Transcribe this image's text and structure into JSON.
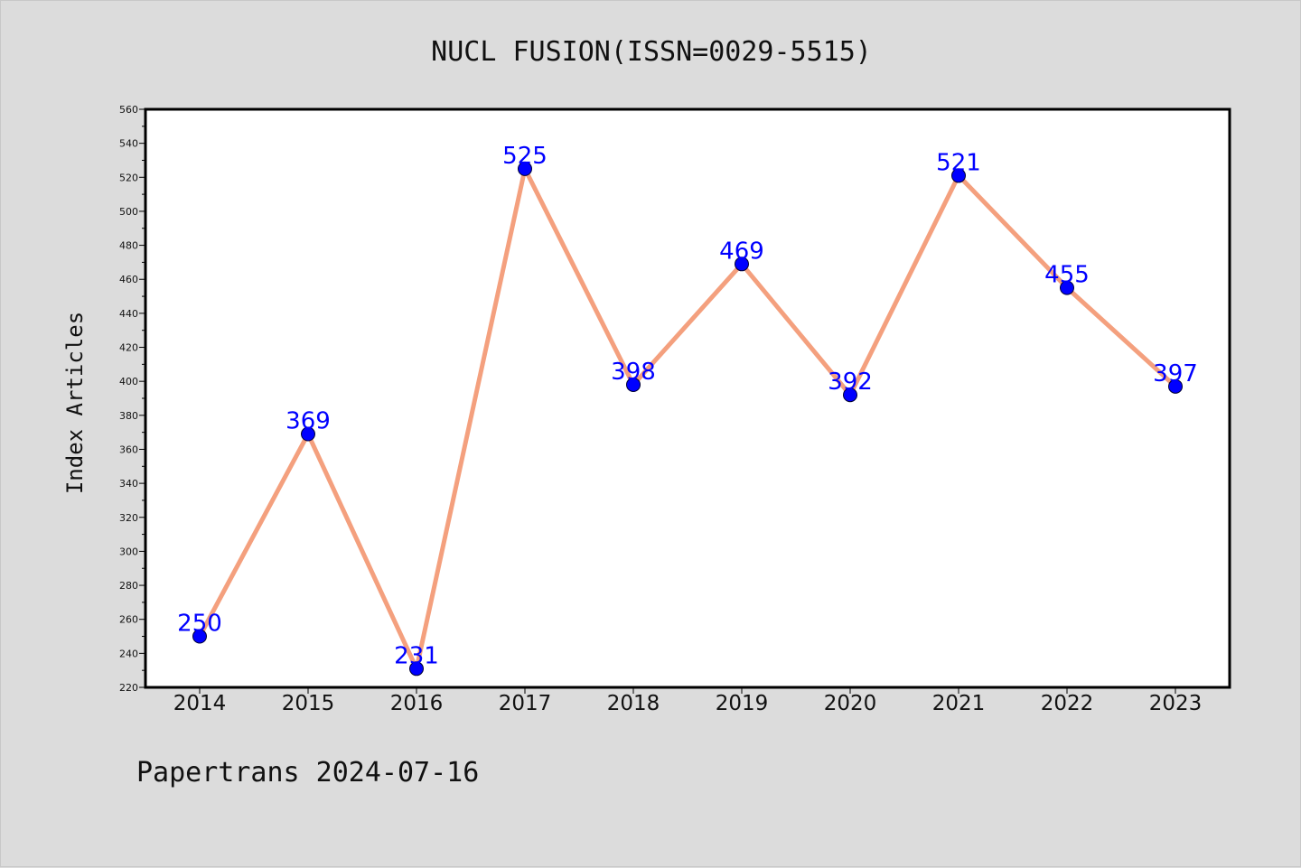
{
  "chart_data": {
    "type": "line",
    "title": "NUCL FUSION(ISSN=0029-5515)",
    "ylabel": "Index Articles",
    "xlabel": "",
    "footer": "Papertrans 2024-07-16",
    "categories": [
      "2014",
      "2015",
      "2016",
      "2017",
      "2018",
      "2019",
      "2020",
      "2021",
      "2022",
      "2023"
    ],
    "values": [
      250,
      369,
      231,
      525,
      398,
      469,
      392,
      521,
      455,
      397
    ],
    "data_labels": [
      "250",
      "369",
      "231",
      "525",
      "398",
      "469",
      "392",
      "521",
      "455",
      "397"
    ],
    "ylim": [
      220,
      560
    ],
    "yticks": [
      220,
      240,
      260,
      280,
      300,
      320,
      340,
      360,
      380,
      400,
      420,
      440,
      460,
      480,
      500,
      520,
      540,
      560
    ],
    "grid": false,
    "colors": {
      "line": "#f4a07e",
      "marker": "#0000ff",
      "data_label": "#0000ff",
      "background": "#dcdcdc",
      "plot_background": "#ffffff"
    }
  }
}
